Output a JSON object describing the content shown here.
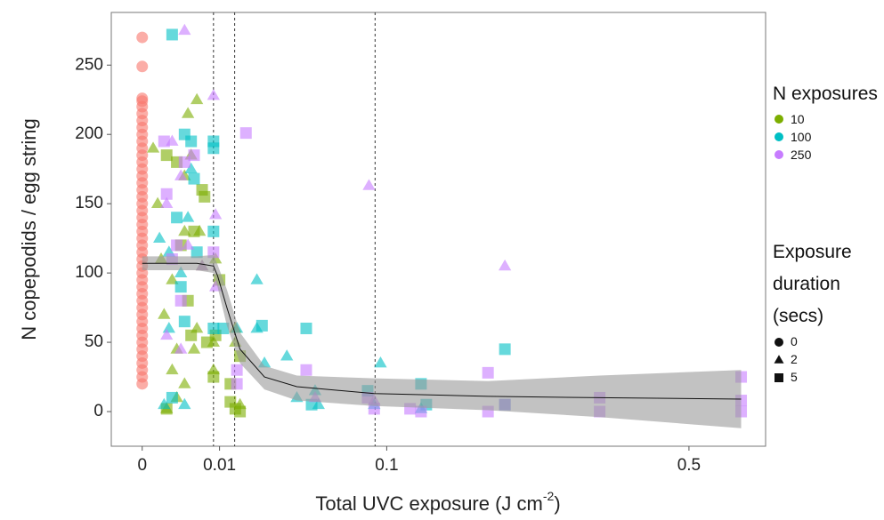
{
  "chart_data": {
    "type": "scatter",
    "x_scale": "sqrt",
    "y_label": "N copepodids / egg string",
    "x_label": "Total UVC exposure (J cm",
    "x_label_sup": "-2",
    "x_label_end": ")",
    "xlim": [
      -0.0016,
      0.65
    ],
    "xticks": [
      0,
      0.01,
      0.1,
      0.5
    ],
    "ylim": [
      -25,
      288
    ],
    "yticks": [
      0,
      50,
      100,
      150,
      200,
      250
    ],
    "vlines": [
      0.0085,
      0.0143,
      0.0907
    ],
    "color_legend": {
      "title": "N exposures",
      "items": [
        {
          "label": "10",
          "color": "#7cae00"
        },
        {
          "label": "100",
          "color": "#00bfc4"
        },
        {
          "label": "250",
          "color": "#c77cff"
        }
      ]
    },
    "shape_legend": {
      "title": "Exposure duration (secs)",
      "items": [
        {
          "label": "0",
          "shape": "circle"
        },
        {
          "label": "2",
          "shape": "triangle"
        },
        {
          "label": "5",
          "shape": "square"
        }
      ]
    },
    "series": [
      {
        "color": "#f8766d",
        "shape": "circle",
        "x": [
          0,
          0,
          0,
          0,
          0,
          0,
          0,
          0,
          0,
          0,
          0,
          0,
          0,
          0,
          0,
          0,
          0,
          0,
          0,
          0,
          0,
          0,
          0,
          0,
          0,
          0,
          0,
          0,
          0,
          0,
          0,
          0,
          0,
          0,
          0,
          0,
          0,
          0,
          0,
          0,
          0,
          0,
          0,
          0,
          0
        ],
        "y": [
          270,
          249,
          226,
          224,
          220,
          215,
          210,
          205,
          200,
          195,
          190,
          185,
          180,
          175,
          170,
          165,
          160,
          155,
          150,
          145,
          140,
          135,
          130,
          125,
          120,
          115,
          110,
          105,
          100,
          95,
          90,
          85,
          80,
          75,
          70,
          65,
          60,
          55,
          50,
          45,
          40,
          35,
          30,
          25,
          20
        ]
      },
      {
        "color": "#7cae00",
        "shape": "triangle",
        "x": [
          0.0004,
          0.0002,
          0.0006,
          0.0008,
          0.001,
          0.0015,
          0.002,
          0.003,
          0.0035,
          0.004,
          0.005,
          0.006,
          0.005,
          0.0045,
          0.003,
          0.002,
          0.0085,
          0.0085,
          0.009,
          0.0145,
          0.0145,
          0.016,
          0.0055,
          0.003,
          0.0015
        ],
        "y": [
          150,
          190,
          110,
          70,
          2,
          30,
          45,
          170,
          215,
          185,
          225,
          105,
          60,
          45,
          20,
          10,
          30,
          50,
          110,
          60,
          50,
          5,
          130,
          130,
          95
        ]
      },
      {
        "color": "#7cae00",
        "shape": "square",
        "x": [
          0.001,
          0.002,
          0.0025,
          0.0035,
          0.004,
          0.006,
          0.0065,
          0.007,
          0.0085,
          0.009,
          0.01,
          0.013,
          0.013,
          0.0145,
          0.016,
          0.016,
          0.0045,
          0.001
        ],
        "y": [
          185,
          180,
          120,
          80,
          55,
          160,
          155,
          50,
          25,
          55,
          95,
          20,
          7,
          2,
          40,
          0,
          130,
          2
        ]
      },
      {
        "color": "#00bfc4",
        "shape": "triangle",
        "x": [
          0.0005,
          0.0012,
          0.0025,
          0.004,
          0.0035,
          0.003,
          0.0008,
          0.015,
          0.022,
          0.022,
          0.035,
          0.04,
          0.052,
          0.05,
          0.095,
          0.13,
          0.09,
          0.025,
          0.0012
        ],
        "y": [
          125,
          115,
          100,
          175,
          140,
          5,
          5,
          60,
          95,
          60,
          40,
          10,
          5,
          15,
          35,
          2,
          5,
          35,
          60
        ]
      },
      {
        "color": "#00bfc4",
        "shape": "square",
        "x": [
          0.0015,
          0.003,
          0.004,
          0.0085,
          0.0085,
          0.0085,
          0.0045,
          0.002,
          0.0025,
          0.003,
          0.0085,
          0.005,
          0.011,
          0.024,
          0.045,
          0.048,
          0.085,
          0.13,
          0.135,
          0.22,
          0.22,
          0.0015
        ],
        "y": [
          272,
          200,
          195,
          190,
          195,
          130,
          168,
          140,
          90,
          65,
          60,
          115,
          60,
          62,
          60,
          5,
          15,
          20,
          5,
          45,
          5,
          10
        ]
      },
      {
        "color": "#c77cff",
        "shape": "triangle",
        "x": [
          0.003,
          0.0085,
          0.009,
          0.0015,
          0.001,
          0.0025,
          0.0035,
          0.001,
          0.0025,
          0.006,
          0.086,
          0.22,
          0.05,
          0.09,
          0.009
        ],
        "y": [
          275,
          228,
          142,
          195,
          150,
          170,
          120,
          55,
          45,
          105,
          163,
          105,
          10,
          8,
          90
        ]
      },
      {
        "color": "#c77cff",
        "shape": "square",
        "x": [
          0.0008,
          0.003,
          0.0045,
          0.002,
          0.0015,
          0.001,
          0.0025,
          0.018,
          0.0085,
          0.015,
          0.015,
          0.045,
          0.085,
          0.12,
          0.13,
          0.2,
          0.2,
          0.35,
          0.35,
          0.6,
          0.6,
          0.6,
          0.22,
          0.09
        ],
        "y": [
          195,
          180,
          185,
          120,
          110,
          157,
          80,
          201,
          115,
          30,
          20,
          30,
          10,
          2,
          0,
          28,
          0,
          10,
          0,
          25,
          0,
          8,
          5,
          2
        ]
      }
    ],
    "smooth": {
      "x": [
        0,
        0.005,
        0.0085,
        0.0095,
        0.012,
        0.016,
        0.025,
        0.04,
        0.09,
        0.2,
        0.35,
        0.6
      ],
      "y": [
        107,
        107,
        105,
        98,
        75,
        45,
        25,
        18,
        13,
        11,
        10,
        9
      ],
      "lower": [
        102,
        102,
        100,
        90,
        62,
        35,
        16,
        8,
        4,
        1,
        -4,
        -12
      ],
      "upper": [
        112,
        112,
        113,
        106,
        88,
        57,
        33,
        26,
        24,
        22,
        26,
        30
      ]
    }
  }
}
